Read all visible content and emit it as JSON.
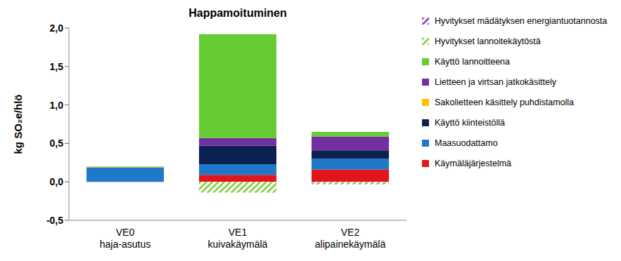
{
  "chart_data": {
    "type": "bar",
    "title": "Happamoituminen",
    "y_label": "kg SO₂e/hlö",
    "categories": [
      "VE0\nhaja-asutus",
      "VE1\nkuivakäymälä",
      "VE2\nalipainekäymälä"
    ],
    "stacked": true,
    "ylim": [
      -0.5,
      2.0
    ],
    "yticks": [
      {
        "value": -0.5,
        "label": "-0,5"
      },
      {
        "value": 0,
        "label": "0,0"
      },
      {
        "value": 0.5,
        "label": "0,5"
      },
      {
        "value": 1.0,
        "label": "1,0"
      },
      {
        "value": 1.5,
        "label": "1,5"
      },
      {
        "value": 2.0,
        "label": "2,0"
      }
    ],
    "grid": false,
    "legend": "right",
    "series": [
      {
        "name": "Käymäläjärjestelmä",
        "color": "#e3141c",
        "values": [
          0,
          0.09,
          0.16
        ]
      },
      {
        "name": "Maasuodattamo",
        "color": "#1f78c8",
        "values": [
          0.19,
          0.14,
          0.14
        ]
      },
      {
        "name": "Käyttö kiinteistöllä",
        "color": "#0d2150",
        "values": [
          0,
          0.24,
          0.11
        ]
      },
      {
        "name": "Sakolietteen käsittely puhdistamolla",
        "color": "#ffc000",
        "values": [
          0.005,
          0,
          0
        ]
      },
      {
        "name": "Lietteen ja virtsan jatkokäsittely",
        "color": "#7030a0",
        "values": [
          0,
          0.1,
          0.18
        ]
      },
      {
        "name": "Käyttö lannoitteena",
        "color": "#66cc33",
        "values": [
          0.005,
          1.35,
          0.06
        ]
      },
      {
        "name": "Hyvitykset lannoitekäytöstä",
        "color": "#92d050",
        "values": [
          0,
          -0.14,
          -0.02
        ]
      },
      {
        "name": "Hyvitykset mädätyksen energiantuotannosta",
        "color": "#9b4fc8",
        "values": [
          0,
          0,
          -0.01
        ]
      }
    ]
  }
}
